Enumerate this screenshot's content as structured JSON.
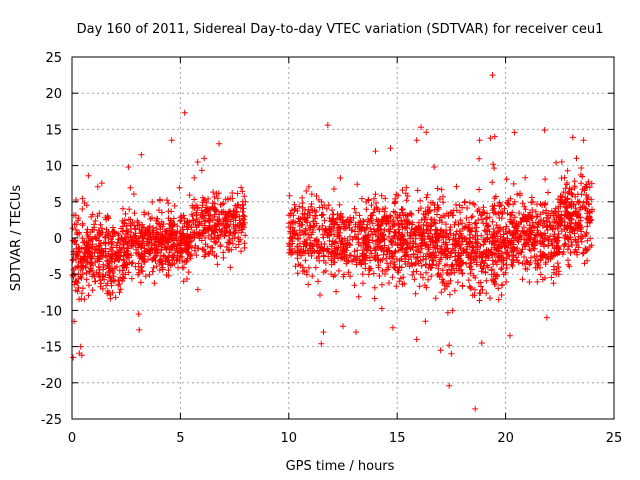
{
  "chart_data": {
    "type": "scatter",
    "title": "Day 160 of 2011, Sidereal Day-to-day VTEC variation (SDTVAR) for receiver ceu1",
    "xlabel": "GPS time / hours",
    "ylabel": "SDTVAR / TECUs",
    "xlim": [
      0,
      25
    ],
    "ylim": [
      -25,
      25
    ],
    "xticks": [
      0,
      5,
      10,
      15,
      20,
      25
    ],
    "yticks": [
      -25,
      -20,
      -15,
      -10,
      -5,
      0,
      5,
      10,
      15,
      20,
      25
    ],
    "grid": true,
    "marker": "plus",
    "color": "#ff0000",
    "series": [
      {
        "name": "ceu1",
        "density_bands": [
          {
            "x_range": [
              0.0,
              0.5
            ],
            "y_center": -3.5,
            "spread": 5.5,
            "weight": 5
          },
          {
            "x_range": [
              0.5,
              2.5
            ],
            "y_center": -2.0,
            "spread": 4.5,
            "weight": 5
          },
          {
            "x_range": [
              2.5,
              5.5
            ],
            "y_center": -0.5,
            "spread": 4.0,
            "weight": 5
          },
          {
            "x_range": [
              5.5,
              8.0
            ],
            "y_center": 2.0,
            "spread": 3.8,
            "weight": 4
          },
          {
            "x_range": [
              10.0,
              13.5
            ],
            "y_center": 0.0,
            "spread": 4.5,
            "weight": 4
          },
          {
            "x_range": [
              13.5,
              17.0
            ],
            "y_center": 0.0,
            "spread": 5.0,
            "weight": 5
          },
          {
            "x_range": [
              17.0,
              20.0
            ],
            "y_center": -1.0,
            "spread": 5.5,
            "weight": 5
          },
          {
            "x_range": [
              20.0,
              22.5
            ],
            "y_center": 0.5,
            "spread": 5.0,
            "weight": 5
          },
          {
            "x_range": [
              22.5,
              24.0
            ],
            "y_center": 3.0,
            "spread": 5.0,
            "weight": 5
          }
        ],
        "outliers": [
          {
            "x": 0.05,
            "y": -16.5
          },
          {
            "x": 0.4,
            "y": -15.0
          },
          {
            "x": 0.45,
            "y": -16.2
          },
          {
            "x": 3.2,
            "y": 11.5
          },
          {
            "x": 2.6,
            "y": 9.8
          },
          {
            "x": 3.1,
            "y": -12.7
          },
          {
            "x": 4.6,
            "y": 13.5
          },
          {
            "x": 5.2,
            "y": 17.3
          },
          {
            "x": 5.8,
            "y": 10.5
          },
          {
            "x": 6.1,
            "y": 11.0
          },
          {
            "x": 11.8,
            "y": 15.6
          },
          {
            "x": 11.5,
            "y": -14.6
          },
          {
            "x": 11.6,
            "y": -13.0
          },
          {
            "x": 12.5,
            "y": -12.2
          },
          {
            "x": 13.1,
            "y": -13.0
          },
          {
            "x": 14.0,
            "y": 12.0
          },
          {
            "x": 14.8,
            "y": -12.4
          },
          {
            "x": 16.1,
            "y": 15.3
          },
          {
            "x": 15.9,
            "y": 13.5
          },
          {
            "x": 15.9,
            "y": -14.0
          },
          {
            "x": 16.3,
            "y": -11.5
          },
          {
            "x": 17.0,
            "y": -15.5
          },
          {
            "x": 17.4,
            "y": -20.4
          },
          {
            "x": 17.4,
            "y": -14.8
          },
          {
            "x": 17.5,
            "y": -16.0
          },
          {
            "x": 18.6,
            "y": -23.6
          },
          {
            "x": 18.8,
            "y": 13.5
          },
          {
            "x": 19.3,
            "y": 13.8
          },
          {
            "x": 19.4,
            "y": 22.5
          },
          {
            "x": 19.5,
            "y": 14.0
          },
          {
            "x": 18.9,
            "y": -14.5
          },
          {
            "x": 20.2,
            "y": -13.5
          },
          {
            "x": 21.8,
            "y": 14.9
          },
          {
            "x": 21.9,
            "y": -11.0
          },
          {
            "x": 23.1,
            "y": 13.9
          },
          {
            "x": 23.6,
            "y": 13.5
          }
        ]
      }
    ]
  }
}
